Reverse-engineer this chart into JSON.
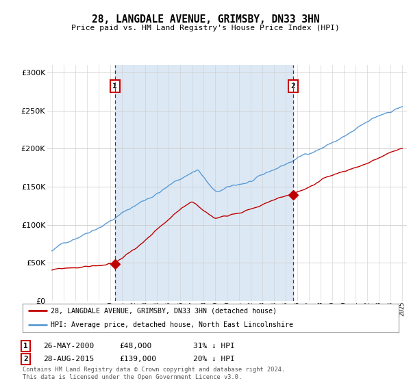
{
  "title": "28, LANGDALE AVENUE, GRIMSBY, DN33 3HN",
  "subtitle": "Price paid vs. HM Land Registry's House Price Index (HPI)",
  "ylim": [
    0,
    310000
  ],
  "yticks": [
    0,
    50000,
    100000,
    150000,
    200000,
    250000,
    300000
  ],
  "ytick_labels": [
    "£0",
    "£50K",
    "£100K",
    "£150K",
    "£200K",
    "£250K",
    "£300K"
  ],
  "hpi_color": "#5b9bd5",
  "price_color": "#c00000",
  "shade_color": "#dce9f5",
  "sale1_year": 2000.4,
  "sale1_price": 48000,
  "sale1_label": "1",
  "sale1_date": "26-MAY-2000",
  "sale1_amount": "£48,000",
  "sale1_pct": "31% ↓ HPI",
  "sale2_year": 2015.65,
  "sale2_price": 139000,
  "sale2_label": "2",
  "sale2_date": "28-AUG-2015",
  "sale2_amount": "£139,000",
  "sale2_pct": "20% ↓ HPI",
  "vline_color": "#cc0000",
  "background_color": "#ffffff",
  "grid_color": "#cccccc",
  "legend_label_red": "28, LANGDALE AVENUE, GRIMSBY, DN33 3HN (detached house)",
  "legend_label_blue": "HPI: Average price, detached house, North East Lincolnshire",
  "footnote": "Contains HM Land Registry data © Crown copyright and database right 2024.\nThis data is licensed under the Open Government Licence v3.0."
}
